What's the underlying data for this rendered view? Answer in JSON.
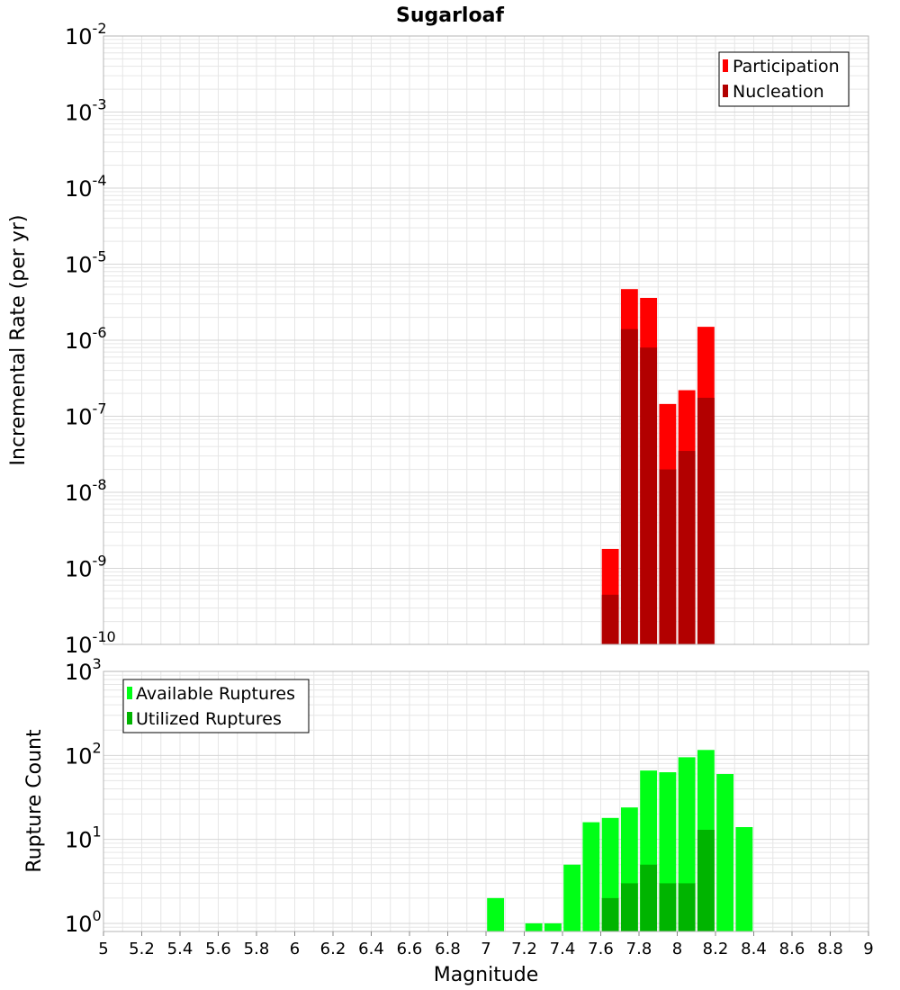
{
  "title": "Sugarloaf",
  "xlabel": "Magnitude",
  "x_ticks": [
    "5",
    "5.2",
    "5.4",
    "5.6",
    "5.8",
    "6",
    "6.2",
    "6.4",
    "6.6",
    "6.8",
    "7",
    "7.2",
    "7.4",
    "7.6",
    "7.8",
    "8",
    "8.2",
    "8.4",
    "8.6",
    "8.8",
    "9"
  ],
  "colors": {
    "participation": "#ff0000",
    "nucleation": "#b20000",
    "available": "#00ff16",
    "utilized": "#00b400",
    "grid": "#e6e6e6",
    "frame": "#b4b4b4"
  },
  "chart_data": [
    {
      "type": "bar",
      "title": "Sugarloaf",
      "xlabel": "Magnitude",
      "ylabel": "Incremental Rate (per yr)",
      "yscale": "log",
      "xlim": [
        5,
        9
      ],
      "ylim": [
        1e-10,
        0.01
      ],
      "y_tick_exponents": [
        "-10",
        "-9",
        "-8",
        "-7",
        "-6",
        "-5",
        "-4",
        "-3",
        "-2"
      ],
      "legend_position": "top-right",
      "bin_width": 0.1,
      "x": [
        7.65,
        7.75,
        7.85,
        7.95,
        8.05,
        8.15
      ],
      "series": [
        {
          "name": "Participation",
          "values": [
            1.8e-09,
            4.7e-06,
            3.6e-06,
            1.45e-07,
            2.2e-07,
            1.5e-06
          ]
        },
        {
          "name": "Nucleation",
          "values": [
            4.5e-10,
            1.4e-06,
            8e-07,
            2e-08,
            3.5e-08,
            1.75e-07
          ]
        }
      ]
    },
    {
      "type": "bar",
      "xlabel": "Magnitude",
      "ylabel": "Rupture Count",
      "yscale": "log",
      "xlim": [
        5,
        9
      ],
      "ylim": [
        0.8,
        1000
      ],
      "y_tick_exponents": [
        "0",
        "1",
        "2",
        "3"
      ],
      "legend_position": "top-left",
      "bin_width": 0.1,
      "x": [
        7.05,
        7.25,
        7.35,
        7.45,
        7.55,
        7.65,
        7.75,
        7.85,
        7.95,
        8.05,
        8.15,
        8.25,
        8.35
      ],
      "series": [
        {
          "name": "Available Ruptures",
          "values": [
            2,
            1,
            1,
            5,
            16,
            18,
            24,
            66,
            63,
            95,
            116,
            60,
            14
          ]
        },
        {
          "name": "Utilized Ruptures",
          "values": [
            0,
            0,
            0,
            0,
            0,
            2,
            3,
            5,
            3,
            3,
            13,
            0,
            0
          ]
        }
      ]
    }
  ]
}
